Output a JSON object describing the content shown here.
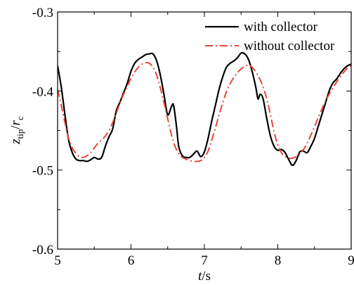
{
  "chart_data": {
    "type": "line",
    "xlabel": {
      "var": "t",
      "unit": "/s"
    },
    "ylabel": {
      "var": "z",
      "sub": "tip",
      "sep": "/",
      "var2": "r",
      "sub2": "c"
    },
    "xlim": [
      5,
      9
    ],
    "ylim": [
      -0.6,
      -0.3
    ],
    "xticks": [
      "5",
      "6",
      "7",
      "8",
      "9"
    ],
    "yticks": [
      "-0.3",
      "-0.4",
      "-0.5",
      "-0.6"
    ],
    "grid": false,
    "legend_position": "top-right",
    "series": [
      {
        "name": "with collector",
        "color": "#000000",
        "dash": "solid",
        "x": [
          5.0,
          5.05,
          5.1,
          5.15,
          5.2,
          5.25,
          5.3,
          5.35,
          5.4,
          5.45,
          5.5,
          5.55,
          5.6,
          5.65,
          5.7,
          5.75,
          5.8,
          5.85,
          5.9,
          5.95,
          6.0,
          6.05,
          6.1,
          6.15,
          6.2,
          6.25,
          6.3,
          6.35,
          6.4,
          6.45,
          6.5,
          6.55,
          6.58,
          6.62,
          6.65,
          6.7,
          6.75,
          6.8,
          6.85,
          6.9,
          6.95,
          7.0,
          7.05,
          7.1,
          7.15,
          7.2,
          7.25,
          7.3,
          7.35,
          7.4,
          7.45,
          7.5,
          7.55,
          7.6,
          7.65,
          7.7,
          7.73,
          7.76,
          7.8,
          7.85,
          7.9,
          7.95,
          8.0,
          8.05,
          8.1,
          8.15,
          8.2,
          8.25,
          8.3,
          8.35,
          8.4,
          8.45,
          8.5,
          8.55,
          8.6,
          8.65,
          8.7,
          8.75,
          8.8,
          8.85,
          8.9,
          8.95,
          9.0
        ],
        "values": [
          -0.368,
          -0.395,
          -0.43,
          -0.462,
          -0.478,
          -0.486,
          -0.488,
          -0.488,
          -0.489,
          -0.487,
          -0.484,
          -0.486,
          -0.484,
          -0.47,
          -0.458,
          -0.448,
          -0.425,
          -0.414,
          -0.402,
          -0.39,
          -0.375,
          -0.365,
          -0.36,
          -0.357,
          -0.354,
          -0.353,
          -0.353,
          -0.362,
          -0.38,
          -0.405,
          -0.43,
          -0.42,
          -0.418,
          -0.445,
          -0.47,
          -0.482,
          -0.484,
          -0.484,
          -0.48,
          -0.476,
          -0.483,
          -0.477,
          -0.46,
          -0.438,
          -0.418,
          -0.398,
          -0.382,
          -0.37,
          -0.365,
          -0.362,
          -0.358,
          -0.352,
          -0.353,
          -0.36,
          -0.375,
          -0.395,
          -0.41,
          -0.404,
          -0.41,
          -0.435,
          -0.457,
          -0.47,
          -0.475,
          -0.474,
          -0.478,
          -0.487,
          -0.494,
          -0.488,
          -0.477,
          -0.476,
          -0.478,
          -0.47,
          -0.46,
          -0.445,
          -0.43,
          -0.415,
          -0.4,
          -0.39,
          -0.385,
          -0.378,
          -0.372,
          -0.368,
          -0.366
        ]
      },
      {
        "name": "without collector",
        "color": "#e8443a",
        "dash": "dashdot",
        "x": [
          5.0,
          5.05,
          5.1,
          5.15,
          5.2,
          5.25,
          5.3,
          5.35,
          5.4,
          5.45,
          5.5,
          5.55,
          5.6,
          5.65,
          5.7,
          5.75,
          5.8,
          5.85,
          5.9,
          5.95,
          6.0,
          6.05,
          6.1,
          6.15,
          6.2,
          6.25,
          6.3,
          6.35,
          6.4,
          6.45,
          6.5,
          6.55,
          6.6,
          6.65,
          6.7,
          6.75,
          6.8,
          6.85,
          6.9,
          6.95,
          7.0,
          7.05,
          7.1,
          7.15,
          7.2,
          7.25,
          7.3,
          7.35,
          7.4,
          7.45,
          7.5,
          7.55,
          7.6,
          7.65,
          7.7,
          7.75,
          7.8,
          7.85,
          7.9,
          7.95,
          8.0,
          8.05,
          8.1,
          8.15,
          8.2,
          8.25,
          8.3,
          8.35,
          8.4,
          8.45,
          8.5,
          8.55,
          8.6,
          8.65,
          8.7,
          8.75,
          8.8,
          8.85,
          8.9,
          8.95,
          9.0
        ],
        "values": [
          -0.398,
          -0.418,
          -0.44,
          -0.46,
          -0.472,
          -0.479,
          -0.483,
          -0.484,
          -0.482,
          -0.478,
          -0.472,
          -0.466,
          -0.462,
          -0.457,
          -0.45,
          -0.44,
          -0.428,
          -0.415,
          -0.404,
          -0.394,
          -0.384,
          -0.376,
          -0.37,
          -0.366,
          -0.364,
          -0.365,
          -0.37,
          -0.38,
          -0.396,
          -0.415,
          -0.435,
          -0.455,
          -0.47,
          -0.479,
          -0.484,
          -0.486,
          -0.488,
          -0.489,
          -0.489,
          -0.488,
          -0.484,
          -0.476,
          -0.462,
          -0.447,
          -0.43,
          -0.415,
          -0.401,
          -0.391,
          -0.383,
          -0.377,
          -0.372,
          -0.369,
          -0.367,
          -0.37,
          -0.376,
          -0.384,
          -0.395,
          -0.41,
          -0.43,
          -0.452,
          -0.468,
          -0.478,
          -0.483,
          -0.485,
          -0.485,
          -0.483,
          -0.48,
          -0.474,
          -0.466,
          -0.456,
          -0.445,
          -0.434,
          -0.423,
          -0.413,
          -0.404,
          -0.396,
          -0.389,
          -0.382,
          -0.376,
          -0.371,
          -0.368
        ]
      }
    ]
  }
}
